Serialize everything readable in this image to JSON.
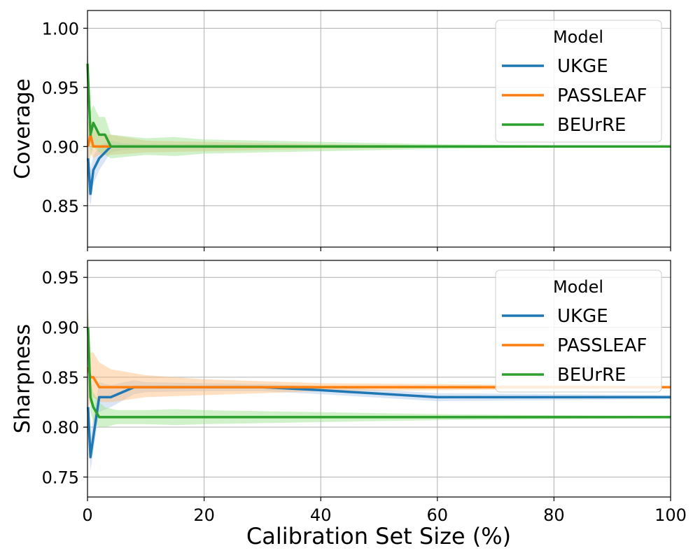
{
  "chart_data": [
    {
      "type": "line",
      "panel": "top",
      "ylabel": "Coverage",
      "xlabel": "",
      "xlim": [
        0,
        100
      ],
      "ylim": [
        0.815,
        1.015
      ],
      "yticks": [
        0.85,
        0.9,
        0.95,
        1.0
      ],
      "ytick_labels": [
        "0.85",
        "0.90",
        "0.95",
        "1.00"
      ],
      "xticks": [
        0,
        20,
        40,
        60,
        80,
        100
      ],
      "grid": true,
      "legend": {
        "title": "Model",
        "position": "top-right",
        "labels": [
          "UKGE",
          "PASSLEAF",
          "BEUrRE"
        ]
      },
      "series": [
        {
          "name": "UKGE",
          "color": "#1f77b4",
          "band_color": "#aec7e8",
          "x": [
            0.1,
            0.5,
            1,
            2,
            4,
            6,
            10,
            20,
            40,
            60,
            80,
            100
          ],
          "y": [
            0.89,
            0.86,
            0.88,
            0.89,
            0.9,
            0.9,
            0.9,
            0.9,
            0.9,
            0.9,
            0.9,
            0.9
          ],
          "lower": [
            0.86,
            0.85,
            0.868,
            0.88,
            0.895,
            0.897,
            0.898,
            0.898,
            0.899,
            0.8995,
            0.8997,
            0.8998
          ],
          "upper": [
            0.92,
            0.88,
            0.892,
            0.9,
            0.905,
            0.903,
            0.902,
            0.902,
            0.901,
            0.9005,
            0.9003,
            0.9002
          ]
        },
        {
          "name": "PASSLEAF",
          "color": "#ff7f0e",
          "band_color": "#ffbb78",
          "x": [
            0.1,
            0.5,
            1,
            2,
            4,
            10,
            20,
            40,
            60,
            80,
            100
          ],
          "y": [
            0.9,
            0.91,
            0.9,
            0.9,
            0.9,
            0.9,
            0.9,
            0.9,
            0.9,
            0.9,
            0.9
          ],
          "lower": [
            0.88,
            0.895,
            0.89,
            0.893,
            0.893,
            0.895,
            0.896,
            0.898,
            0.899,
            0.8995,
            0.8998
          ],
          "upper": [
            0.92,
            0.925,
            0.915,
            0.91,
            0.91,
            0.905,
            0.904,
            0.902,
            0.901,
            0.9005,
            0.9002
          ]
        },
        {
          "name": "BEUrRE",
          "color": "#2ca02c",
          "band_color": "#98df8a",
          "x": [
            0,
            0.5,
            1,
            2,
            3,
            4,
            10,
            15,
            20,
            40,
            60,
            80,
            100
          ],
          "y": [
            0.97,
            0.91,
            0.92,
            0.91,
            0.91,
            0.9,
            0.9,
            0.9,
            0.9,
            0.9,
            0.9,
            0.9,
            0.9
          ],
          "lower": [
            0.95,
            0.89,
            0.9,
            0.895,
            0.893,
            0.89,
            0.893,
            0.892,
            0.894,
            0.896,
            0.898,
            0.899,
            0.8995
          ],
          "upper": [
            0.99,
            0.93,
            0.935,
            0.925,
            0.925,
            0.91,
            0.907,
            0.908,
            0.906,
            0.904,
            0.902,
            0.901,
            0.9005
          ]
        }
      ]
    },
    {
      "type": "line",
      "panel": "bottom",
      "ylabel": "Sharpness",
      "xlabel": "Calibration Set Size (%)",
      "xlim": [
        0,
        100
      ],
      "ylim": [
        0.73,
        0.967
      ],
      "yticks": [
        0.75,
        0.8,
        0.85,
        0.9,
        0.95
      ],
      "ytick_labels": [
        "0.75",
        "0.80",
        "0.85",
        "0.90",
        "0.95"
      ],
      "xticks": [
        0,
        20,
        40,
        60,
        80,
        100
      ],
      "xtick_labels": [
        "0",
        "20",
        "40",
        "60",
        "80",
        "100"
      ],
      "grid": true,
      "legend": {
        "title": "Model",
        "position": "top-right",
        "labels": [
          "UKGE",
          "PASSLEAF",
          "BEUrRE"
        ]
      },
      "series": [
        {
          "name": "UKGE",
          "color": "#1f77b4",
          "band_color": "#aec7e8",
          "x": [
            0.1,
            0.5,
            1,
            2,
            4,
            8,
            10,
            20,
            30,
            40,
            60,
            80,
            100
          ],
          "y": [
            0.82,
            0.77,
            0.79,
            0.83,
            0.83,
            0.84,
            0.84,
            0.84,
            0.84,
            0.837,
            0.83,
            0.83,
            0.83
          ],
          "lower": [
            0.79,
            0.756,
            0.775,
            0.815,
            0.82,
            0.833,
            0.835,
            0.836,
            0.836,
            0.833,
            0.826,
            0.827,
            0.828
          ],
          "upper": [
            0.85,
            0.79,
            0.81,
            0.845,
            0.842,
            0.847,
            0.845,
            0.844,
            0.843,
            0.841,
            0.834,
            0.833,
            0.832
          ]
        },
        {
          "name": "PASSLEAF",
          "color": "#ff7f0e",
          "band_color": "#ffbb78",
          "x": [
            0.1,
            0.5,
            1,
            2,
            4,
            10,
            20,
            30,
            40,
            60,
            80,
            100
          ],
          "y": [
            0.86,
            0.85,
            0.85,
            0.84,
            0.84,
            0.84,
            0.84,
            0.84,
            0.84,
            0.84,
            0.84,
            0.84
          ],
          "lower": [
            0.82,
            0.825,
            0.83,
            0.825,
            0.825,
            0.83,
            0.832,
            0.834,
            0.836,
            0.837,
            0.838,
            0.839
          ],
          "upper": [
            0.92,
            0.875,
            0.875,
            0.865,
            0.858,
            0.852,
            0.848,
            0.846,
            0.844,
            0.843,
            0.842,
            0.841
          ]
        },
        {
          "name": "BEUrRE",
          "color": "#2ca02c",
          "band_color": "#98df8a",
          "x": [
            0.1,
            0.5,
            1,
            2,
            3,
            5,
            10,
            15,
            20,
            40,
            60,
            80,
            100
          ],
          "y": [
            0.9,
            0.83,
            0.82,
            0.81,
            0.81,
            0.81,
            0.81,
            0.81,
            0.81,
            0.81,
            0.81,
            0.81,
            0.81
          ],
          "lower": [
            0.88,
            0.815,
            0.805,
            0.8,
            0.8,
            0.803,
            0.803,
            0.802,
            0.803,
            0.805,
            0.807,
            0.808,
            0.809
          ],
          "upper": [
            0.92,
            0.845,
            0.835,
            0.825,
            0.82,
            0.817,
            0.817,
            0.818,
            0.817,
            0.815,
            0.813,
            0.812,
            0.811
          ]
        }
      ]
    }
  ]
}
